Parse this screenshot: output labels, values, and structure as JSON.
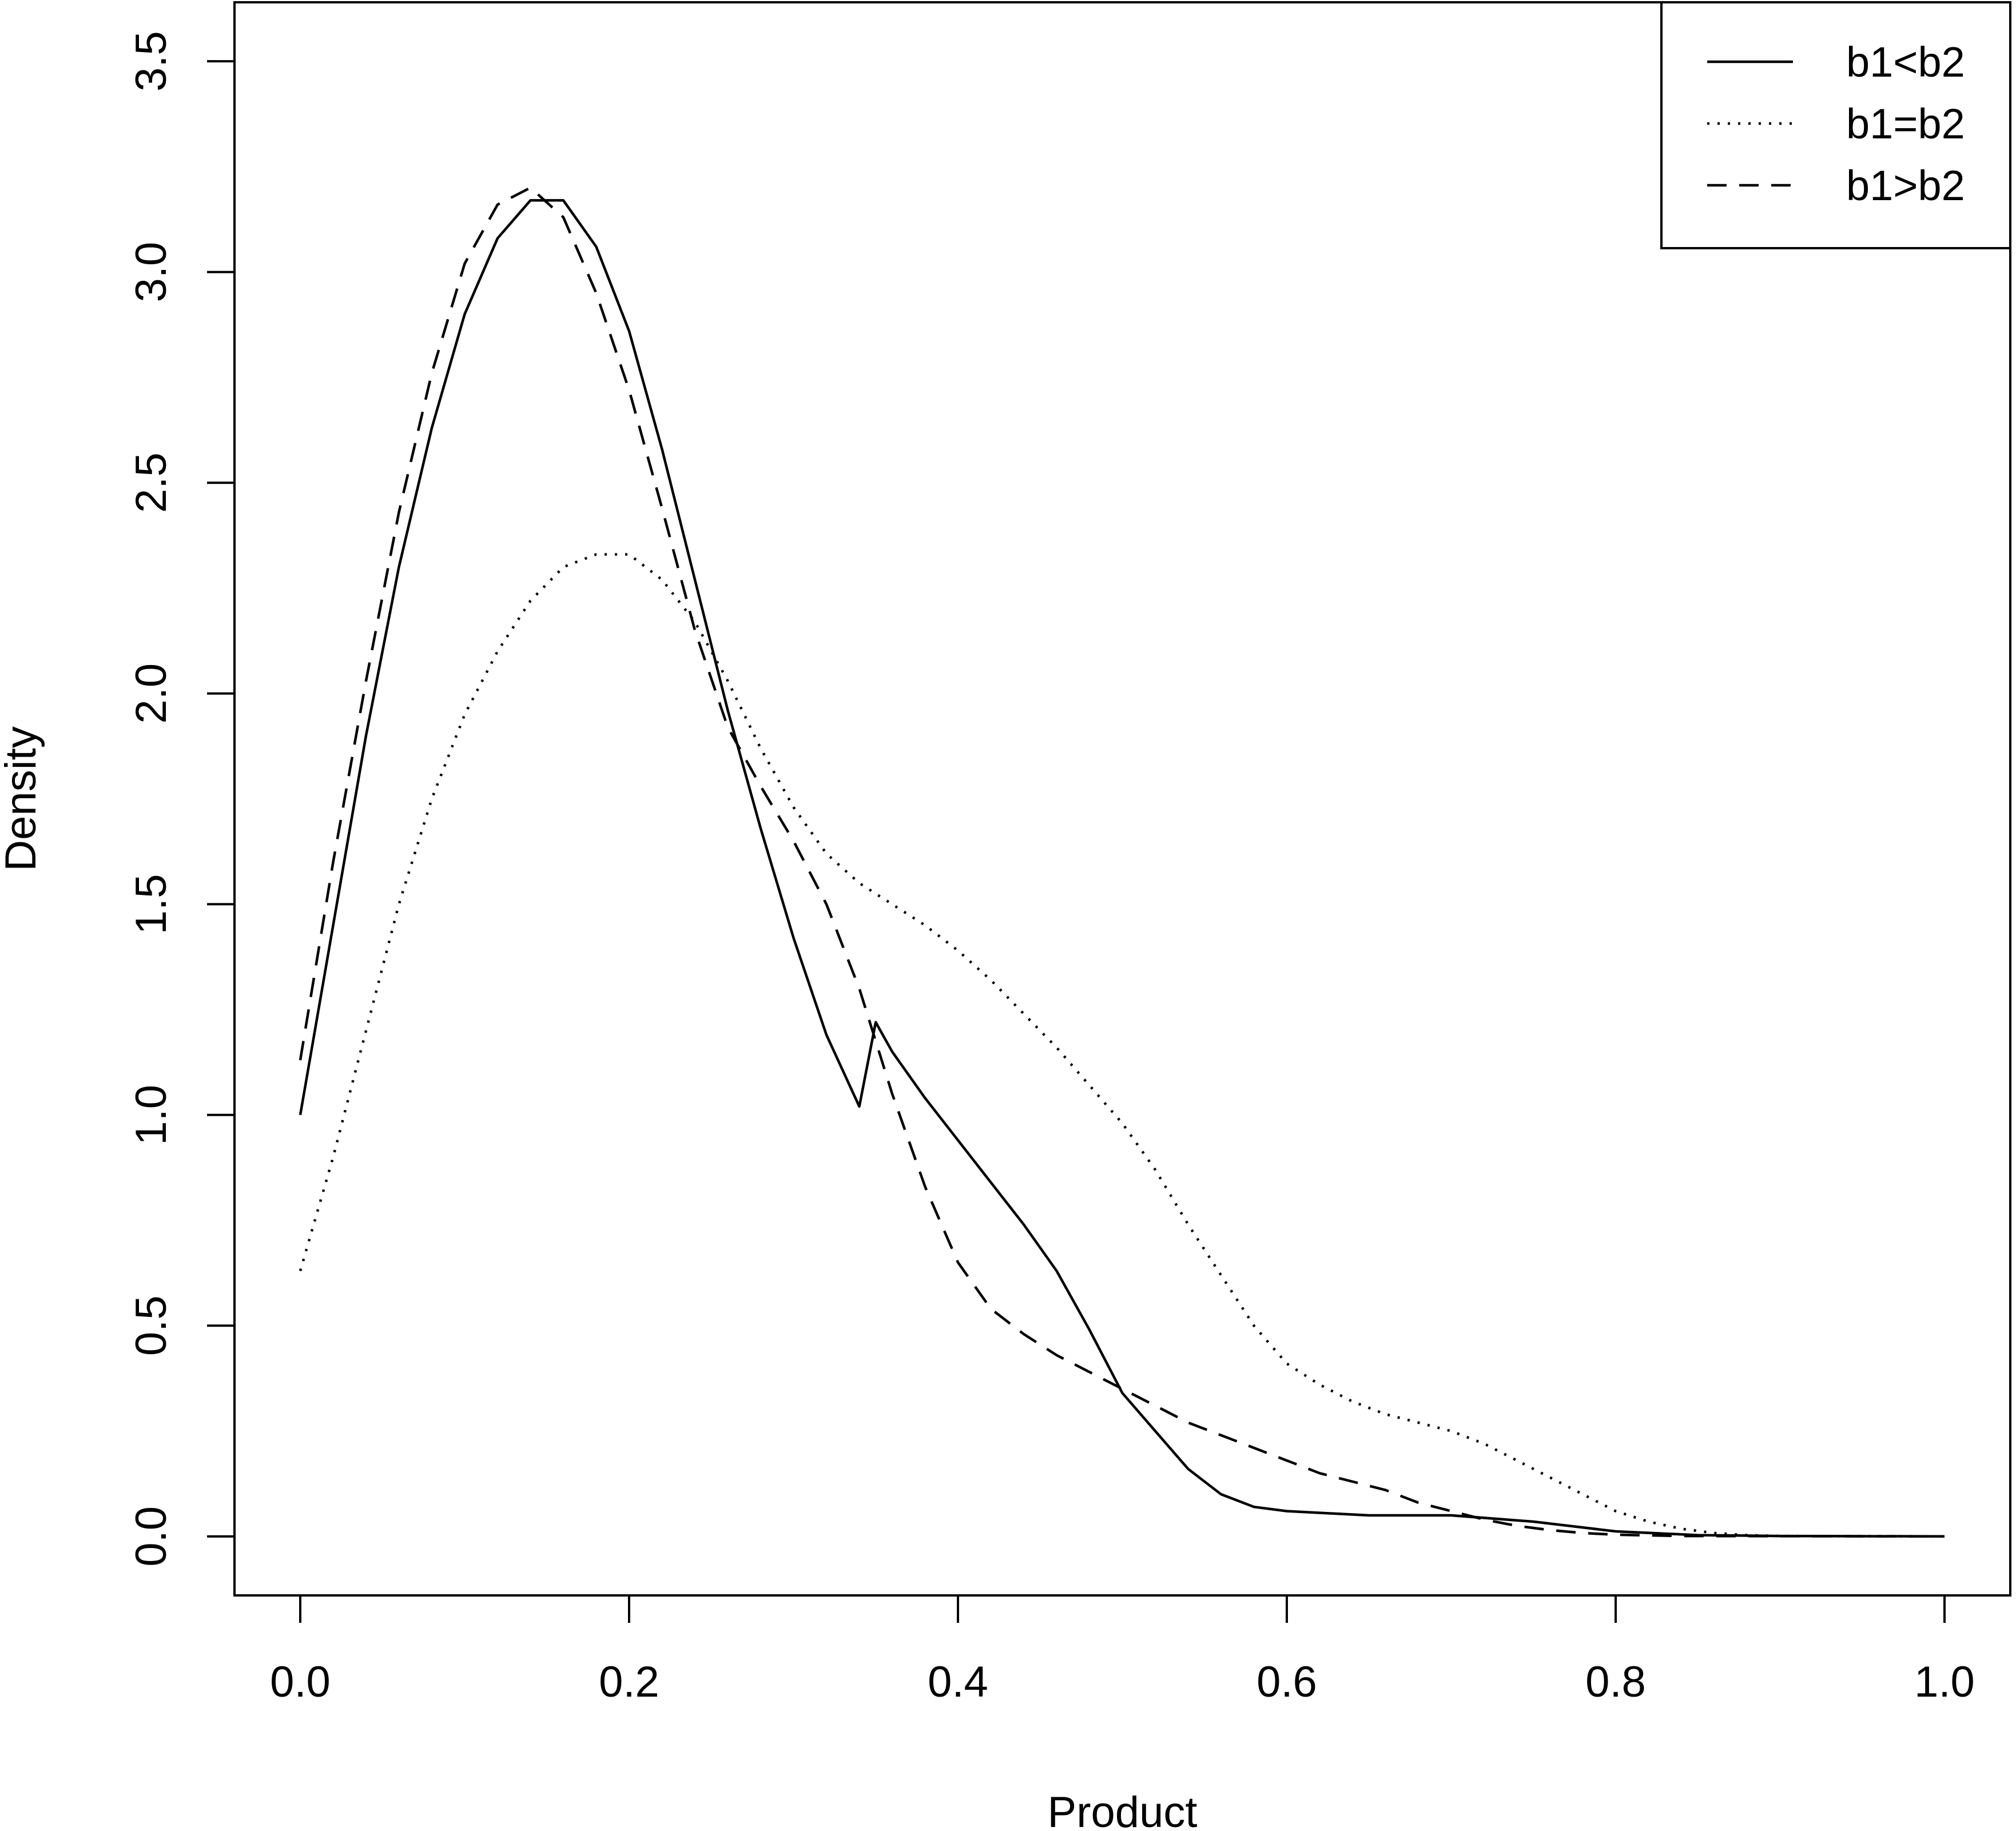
{
  "chart_data": {
    "type": "line",
    "title": "",
    "xlabel": "Product",
    "ylabel": "Density",
    "xlim": [
      -0.04,
      1.04
    ],
    "ylim": [
      -0.14,
      3.64
    ],
    "xticks": [
      0.0,
      0.2,
      0.4,
      0.6,
      0.8,
      1.0
    ],
    "xtick_labels": [
      "0.0",
      "0.2",
      "0.4",
      "0.6",
      "0.8",
      "1.0"
    ],
    "yticks": [
      0.0,
      0.5,
      1.0,
      1.5,
      2.0,
      2.5,
      3.0,
      3.5
    ],
    "ytick_labels": [
      "0.0",
      "0.5",
      "1.0",
      "1.5",
      "2.0",
      "2.5",
      "3.0",
      "3.5"
    ],
    "grid": false,
    "legend": {
      "position": "top-right"
    },
    "series": [
      {
        "name": "b1<b2",
        "line_style": "solid",
        "color": "#000000",
        "points": [
          [
            0.0,
            1.0
          ],
          [
            0.02,
            1.45
          ],
          [
            0.04,
            1.9
          ],
          [
            0.06,
            2.3
          ],
          [
            0.08,
            2.63
          ],
          [
            0.1,
            2.9
          ],
          [
            0.12,
            3.08
          ],
          [
            0.14,
            3.17
          ],
          [
            0.16,
            3.17
          ],
          [
            0.18,
            3.06
          ],
          [
            0.2,
            2.86
          ],
          [
            0.22,
            2.58
          ],
          [
            0.24,
            2.27
          ],
          [
            0.26,
            1.96
          ],
          [
            0.28,
            1.68
          ],
          [
            0.3,
            1.42
          ],
          [
            0.32,
            1.19
          ],
          [
            0.34,
            1.02
          ],
          [
            0.35,
            1.22
          ],
          [
            0.36,
            1.15
          ],
          [
            0.38,
            1.04
          ],
          [
            0.4,
            0.94
          ],
          [
            0.42,
            0.84
          ],
          [
            0.44,
            0.74
          ],
          [
            0.46,
            0.63
          ],
          [
            0.48,
            0.49
          ],
          [
            0.5,
            0.34
          ],
          [
            0.52,
            0.25
          ],
          [
            0.54,
            0.16
          ],
          [
            0.56,
            0.1
          ],
          [
            0.58,
            0.07
          ],
          [
            0.6,
            0.06
          ],
          [
            0.65,
            0.05
          ],
          [
            0.7,
            0.05
          ],
          [
            0.75,
            0.035
          ],
          [
            0.8,
            0.012
          ],
          [
            0.85,
            0.003
          ],
          [
            0.9,
            0.001
          ],
          [
            1.0,
            0.0
          ]
        ]
      },
      {
        "name": "b1=b2",
        "line_style": "dotted",
        "color": "#000000",
        "points": [
          [
            0.0,
            0.63
          ],
          [
            0.02,
            0.9
          ],
          [
            0.04,
            1.2
          ],
          [
            0.06,
            1.5
          ],
          [
            0.08,
            1.75
          ],
          [
            0.1,
            1.95
          ],
          [
            0.12,
            2.1
          ],
          [
            0.14,
            2.22
          ],
          [
            0.16,
            2.3
          ],
          [
            0.18,
            2.33
          ],
          [
            0.2,
            2.33
          ],
          [
            0.22,
            2.27
          ],
          [
            0.24,
            2.17
          ],
          [
            0.26,
            2.03
          ],
          [
            0.28,
            1.87
          ],
          [
            0.3,
            1.73
          ],
          [
            0.32,
            1.62
          ],
          [
            0.34,
            1.55
          ],
          [
            0.36,
            1.5
          ],
          [
            0.38,
            1.45
          ],
          [
            0.4,
            1.39
          ],
          [
            0.42,
            1.32
          ],
          [
            0.44,
            1.24
          ],
          [
            0.46,
            1.16
          ],
          [
            0.48,
            1.07
          ],
          [
            0.5,
            0.98
          ],
          [
            0.52,
            0.87
          ],
          [
            0.54,
            0.74
          ],
          [
            0.56,
            0.62
          ],
          [
            0.58,
            0.5
          ],
          [
            0.6,
            0.41
          ],
          [
            0.62,
            0.36
          ],
          [
            0.64,
            0.32
          ],
          [
            0.66,
            0.29
          ],
          [
            0.68,
            0.27
          ],
          [
            0.7,
            0.25
          ],
          [
            0.72,
            0.22
          ],
          [
            0.74,
            0.18
          ],
          [
            0.76,
            0.14
          ],
          [
            0.78,
            0.1
          ],
          [
            0.8,
            0.06
          ],
          [
            0.82,
            0.035
          ],
          [
            0.84,
            0.018
          ],
          [
            0.86,
            0.008
          ],
          [
            0.88,
            0.003
          ],
          [
            0.9,
            0.001
          ],
          [
            1.0,
            0.0
          ]
        ]
      },
      {
        "name": "b1>b2",
        "line_style": "dashed",
        "color": "#000000",
        "points": [
          [
            0.0,
            1.13
          ],
          [
            0.02,
            1.6
          ],
          [
            0.04,
            2.03
          ],
          [
            0.06,
            2.43
          ],
          [
            0.08,
            2.76
          ],
          [
            0.1,
            3.02
          ],
          [
            0.12,
            3.16
          ],
          [
            0.14,
            3.2
          ],
          [
            0.16,
            3.13
          ],
          [
            0.18,
            2.95
          ],
          [
            0.2,
            2.72
          ],
          [
            0.22,
            2.44
          ],
          [
            0.24,
            2.15
          ],
          [
            0.26,
            1.92
          ],
          [
            0.28,
            1.78
          ],
          [
            0.3,
            1.65
          ],
          [
            0.32,
            1.5
          ],
          [
            0.34,
            1.3
          ],
          [
            0.36,
            1.05
          ],
          [
            0.38,
            0.83
          ],
          [
            0.4,
            0.65
          ],
          [
            0.42,
            0.54
          ],
          [
            0.44,
            0.48
          ],
          [
            0.46,
            0.43
          ],
          [
            0.48,
            0.39
          ],
          [
            0.5,
            0.35
          ],
          [
            0.52,
            0.31
          ],
          [
            0.54,
            0.27
          ],
          [
            0.56,
            0.24
          ],
          [
            0.58,
            0.21
          ],
          [
            0.6,
            0.18
          ],
          [
            0.62,
            0.15
          ],
          [
            0.64,
            0.13
          ],
          [
            0.66,
            0.11
          ],
          [
            0.68,
            0.08
          ],
          [
            0.7,
            0.06
          ],
          [
            0.72,
            0.04
          ],
          [
            0.74,
            0.025
          ],
          [
            0.76,
            0.015
          ],
          [
            0.78,
            0.008
          ],
          [
            0.8,
            0.004
          ],
          [
            0.84,
            0.001
          ],
          [
            1.0,
            0.0
          ]
        ]
      }
    ]
  }
}
